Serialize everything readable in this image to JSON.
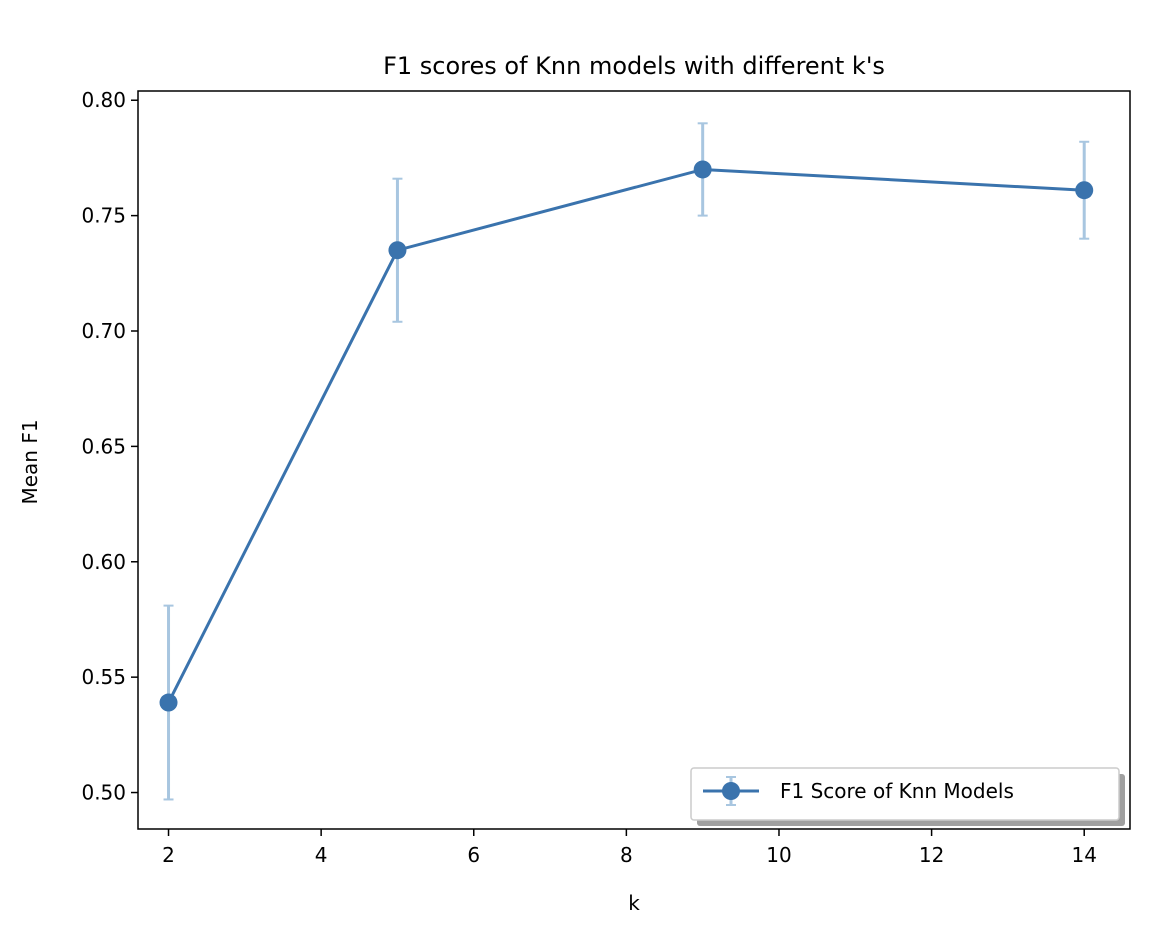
{
  "chart_data": {
    "type": "line",
    "title": "F1 scores of Knn models with different k's",
    "xlabel": "k",
    "ylabel": "Mean F1",
    "xlim": [
      1.6,
      14.6
    ],
    "ylim": [
      0.4842,
      0.804
    ],
    "x_ticks": [
      2,
      4,
      6,
      8,
      10,
      12,
      14
    ],
    "y_ticks": [
      0.5,
      0.55,
      0.6,
      0.65,
      0.7,
      0.75,
      0.8
    ],
    "y_tick_decimals": 2,
    "grid": false,
    "legend_position": "lower-right",
    "series": [
      {
        "name": "F1 Score of Knn Models",
        "color": "#3a73ad",
        "errorbar_color": "#a8c6e0",
        "marker": "circle",
        "x": [
          2,
          5,
          9,
          14
        ],
        "y": [
          0.539,
          0.735,
          0.77,
          0.761
        ],
        "yerr": [
          0.042,
          0.031,
          0.02,
          0.021
        ]
      }
    ]
  }
}
